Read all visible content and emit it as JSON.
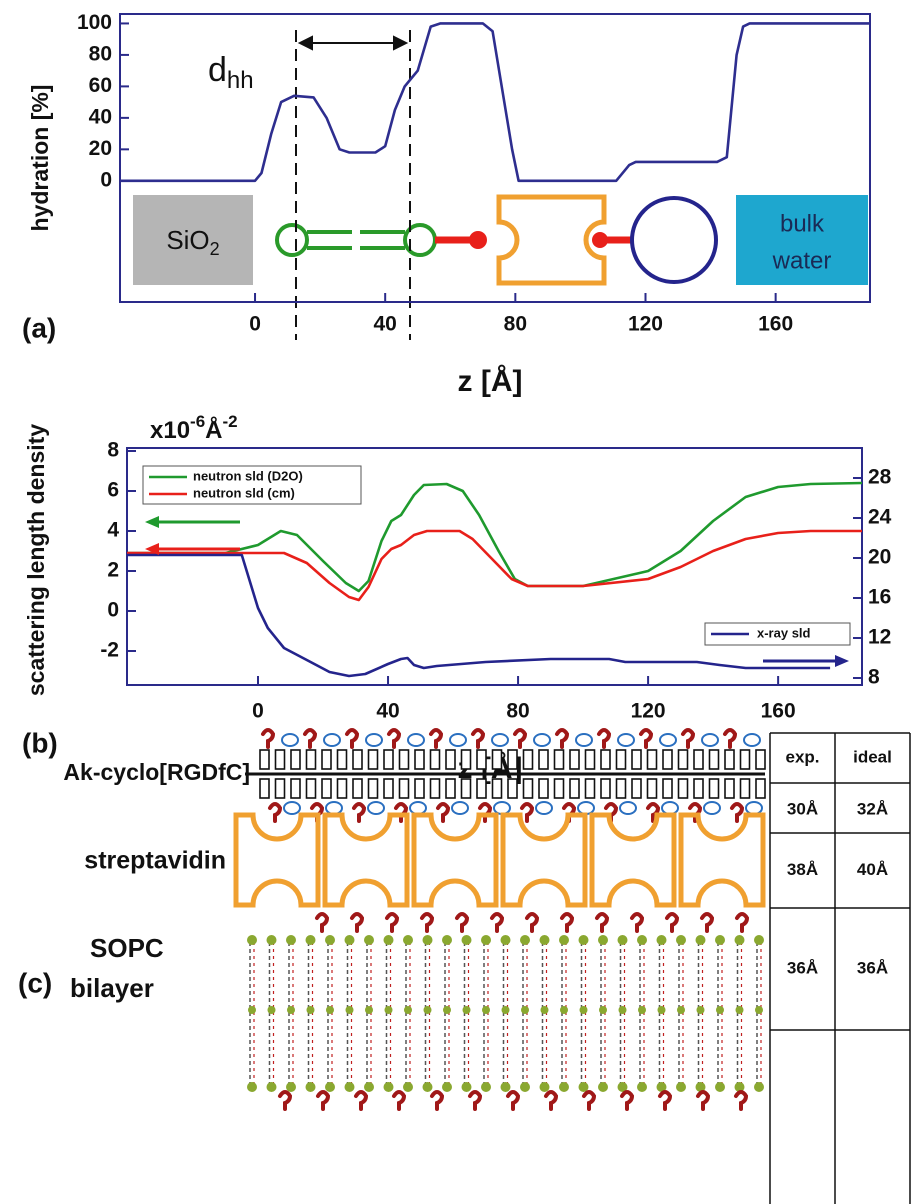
{
  "chart_data": [
    {
      "type": "line",
      "x": [
        -41.5,
        0,
        2,
        5,
        8,
        12,
        18,
        22,
        26,
        29,
        37,
        40,
        43,
        46,
        48,
        50,
        54,
        57,
        70,
        73,
        79,
        81,
        111,
        115,
        117,
        142,
        145,
        148,
        150,
        152,
        189
      ],
      "values": [
        0,
        0,
        5,
        30,
        50,
        54,
        53,
        40,
        20,
        18,
        18,
        22,
        45,
        60,
        65,
        70,
        98,
        100,
        100,
        95,
        20,
        0,
        0,
        10,
        12,
        12,
        15,
        80,
        98,
        100,
        100
      ],
      "color": "#2e2e8f",
      "xlim": [
        -41.5,
        189
      ],
      "ylim": [
        -77,
        106
      ],
      "xticks": [
        0,
        40,
        80,
        120,
        160
      ],
      "yticks": [
        0,
        20,
        40,
        60,
        80,
        100
      ],
      "xlabel": "z [Å]",
      "ylabel": "hydration [%]",
      "panel": "(a)",
      "annotation": [
        "d",
        "hh"
      ],
      "substrate": [
        "SiO",
        "2"
      ],
      "water": [
        "bulk",
        "water"
      ]
    },
    {
      "type": "line",
      "xlim": [
        -40.3,
        185.8
      ],
      "ylim": [
        -3.7,
        8.15
      ],
      "y2lim": [
        7.3,
        31
      ],
      "xticks": [
        0,
        40,
        80,
        120,
        160
      ],
      "yticks": [
        -2,
        0,
        2,
        4,
        6,
        8
      ],
      "y2ticks": [
        8,
        12,
        16,
        20,
        24,
        28
      ],
      "xlabel": "z [Å]",
      "ylabel": "scattering length density",
      "y_unit": [
        "x10",
        "-6",
        "Å",
        "-2"
      ],
      "panel": "(b)",
      "legend": "upper left",
      "series": [
        {
          "name": "neutron sld (D2O)",
          "color": "#1f9a2e",
          "x": [
            -40.3,
            -10,
            0,
            7,
            12,
            20,
            27,
            31,
            34,
            38,
            41,
            44,
            48,
            51,
            58,
            63,
            68,
            74,
            79,
            83,
            100,
            120,
            130,
            140,
            150,
            160,
            170,
            185.8
          ],
          "values": [
            2.9,
            2.9,
            3.3,
            4.0,
            3.8,
            2.5,
            1.4,
            1.0,
            1.5,
            3.5,
            4.5,
            4.8,
            5.8,
            6.3,
            6.35,
            6.0,
            4.8,
            3.0,
            1.6,
            1.25,
            1.25,
            2.0,
            3.0,
            4.5,
            5.7,
            6.2,
            6.35,
            6.4
          ]
        },
        {
          "name": "neutron sld (cm)",
          "color": "#e8201a",
          "x": [
            -40.3,
            0,
            8,
            15,
            22,
            28,
            31,
            34,
            38,
            41,
            44,
            48,
            52,
            62,
            66,
            72,
            78,
            83,
            100,
            120,
            130,
            140,
            150,
            160,
            170,
            185.8
          ],
          "values": [
            2.9,
            2.9,
            2.9,
            2.4,
            1.4,
            0.7,
            0.55,
            1.2,
            2.6,
            3.1,
            3.3,
            3.8,
            4.0,
            4.0,
            3.6,
            2.6,
            1.6,
            1.25,
            1.25,
            1.6,
            2.2,
            3.0,
            3.6,
            3.9,
            4.0,
            4.0
          ]
        },
        {
          "name": "x-ray sld",
          "color": "#24248c",
          "axis": "y2",
          "x": [
            -40.3,
            -5,
            0,
            3,
            8,
            15,
            22,
            28,
            33,
            40,
            44,
            46,
            48,
            51,
            55,
            70,
            90,
            108,
            113,
            135,
            142,
            150,
            176
          ],
          "values": [
            20.3,
            20.3,
            15,
            13,
            11,
            9.8,
            8.6,
            8.2,
            8.4,
            9.4,
            9.9,
            10.0,
            9.3,
            9.0,
            9.2,
            9.6,
            9.9,
            9.9,
            9.6,
            9.6,
            9.3,
            9.0,
            9.0
          ]
        }
      ]
    }
  ],
  "schematic": {
    "panel": "(c)",
    "layers": [
      "Ak-cyclo[RGDfC]",
      "streptavidin"
    ],
    "bilayer": [
      "SOPC",
      "bilayer"
    ],
    "table": {
      "header": [
        "exp.",
        "ideal"
      ],
      "rows": [
        [
          "30Å",
          "32Å"
        ],
        [
          "38Å",
          "40Å"
        ],
        [
          "36Å",
          "36Å"
        ]
      ]
    }
  }
}
